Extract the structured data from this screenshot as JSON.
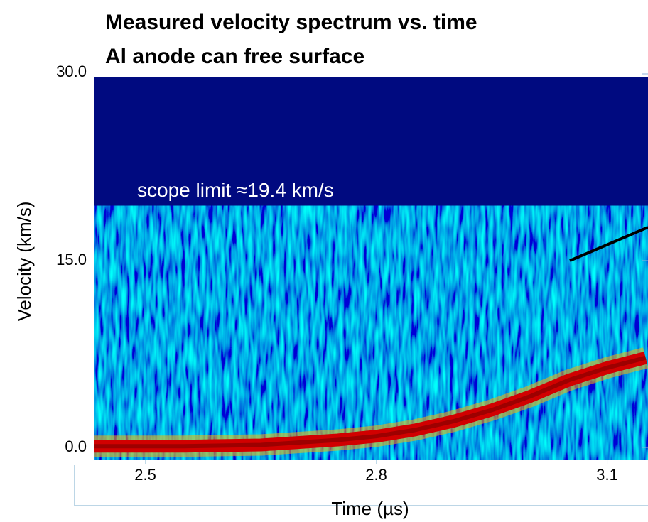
{
  "chart_data": {
    "type": "line",
    "title": "Measured velocity spectrum vs. time",
    "subtitle": "Al anode can free surface",
    "x_label": "Time  (µs)",
    "y_label": "Velocity  (km/s)",
    "x": [
      2.43,
      2.55,
      2.65,
      2.75,
      2.8,
      2.85,
      2.9,
      2.95,
      3.0,
      3.05,
      3.1,
      3.15
    ],
    "values": [
      0.1,
      0.1,
      0.2,
      0.6,
      0.9,
      1.4,
      2.1,
      3.0,
      4.1,
      5.4,
      6.4,
      7.2
    ],
    "color": "#d10000",
    "xlim": [
      2.433,
      3.153
    ],
    "xticks": [
      2.5,
      2.8,
      3.1
    ],
    "ylim": [
      0,
      30
    ],
    "yticks": [
      {
        "value": 0,
        "label": "0.0"
      },
      {
        "value": 15,
        "label": "15.0"
      },
      {
        "value": 30,
        "label": "30.0"
      }
    ],
    "annotations": [
      {
        "text": "scope limit ≈19.4 km/s",
        "value": 19.4
      }
    ]
  }
}
